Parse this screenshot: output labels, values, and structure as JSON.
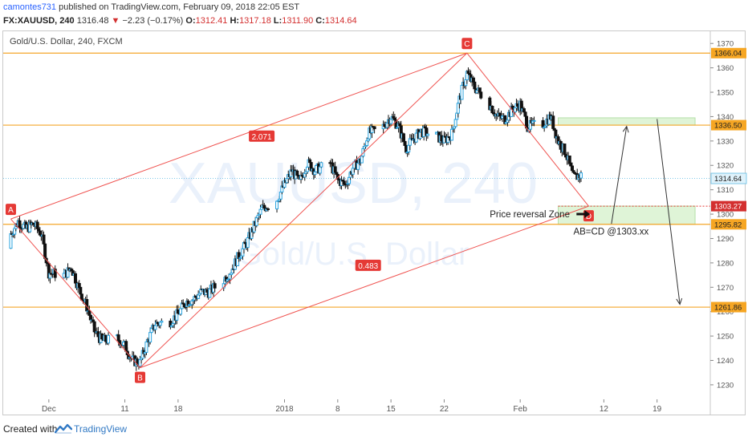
{
  "header": {
    "author": "camontes731",
    "published_text": " published on TradingView.com, February 09, 2018 22:05 EST",
    "symbol": "FX:XAUUSD, 240",
    "last": "1316.48",
    "change_arrow": "▼",
    "change": "−2.23 (−0.17%)",
    "o_label": "O:",
    "o_value": "1312.41",
    "h_label": "H:",
    "h_value": "1317.18",
    "l_label": "L:",
    "l_value": "1311.90",
    "c_label": "C:",
    "c_value": "1314.64"
  },
  "footer": {
    "created_with": "Created with",
    "brand": "TradingView"
  },
  "chart_data": {
    "type": "candlestick",
    "legend": "Gold/U.S. Dollar, 240, FXCM",
    "watermark_symbol": "XAUUSD, 240",
    "watermark_name": "Gold/U.S. Dollar",
    "ylim": [
      1228,
      1375
    ],
    "y_ticks": [
      1230,
      1240,
      1250,
      1260,
      1270,
      1280,
      1290,
      1300,
      1310,
      1320,
      1330,
      1340,
      1350,
      1360,
      1370
    ],
    "x_range": [
      "2017-11-25",
      "2018-02-26"
    ],
    "x_ticks": [
      {
        "label": "Dec",
        "date": "2017-12-01"
      },
      {
        "label": "11",
        "date": "2017-12-11"
      },
      {
        "label": "18",
        "date": "2017-12-18"
      },
      {
        "label": "2018",
        "date": "2018-01-01"
      },
      {
        "label": "8",
        "date": "2018-01-08"
      },
      {
        "label": "15",
        "date": "2018-01-15"
      },
      {
        "label": "22",
        "date": "2018-01-22"
      },
      {
        "label": "Feb",
        "date": "2018-02-01"
      },
      {
        "label": "12",
        "date": "2018-02-12"
      },
      {
        "label": "19",
        "date": "2018-02-19"
      }
    ],
    "price_path": [
      [
        "2017-11-25",
        1286
      ],
      [
        "2017-11-26",
        1292
      ],
      [
        "2017-11-27",
        1297
      ],
      [
        "2017-11-28",
        1294
      ],
      [
        "2017-11-29",
        1296
      ],
      [
        "2017-11-30",
        1292
      ],
      [
        "2017-12-01",
        1276
      ],
      [
        "2017-12-03",
        1275
      ],
      [
        "2017-12-04",
        1278
      ],
      [
        "2017-12-05",
        1269
      ],
      [
        "2017-12-06",
        1262
      ],
      [
        "2017-12-07",
        1252
      ],
      [
        "2017-12-08",
        1248
      ],
      [
        "2017-12-10",
        1249
      ],
      [
        "2017-12-11",
        1246
      ],
      [
        "2017-12-12",
        1240
      ],
      [
        "2017-12-13",
        1239
      ],
      [
        "2017-12-14",
        1248
      ],
      [
        "2017-12-15",
        1255
      ],
      [
        "2017-12-17",
        1256
      ],
      [
        "2017-12-18",
        1259
      ],
      [
        "2017-12-19",
        1264
      ],
      [
        "2017-12-20",
        1265
      ],
      [
        "2017-12-21",
        1268
      ],
      [
        "2017-12-22",
        1268
      ],
      [
        "2017-12-24",
        1273
      ],
      [
        "2017-12-25",
        1277
      ],
      [
        "2017-12-26",
        1283
      ],
      [
        "2017-12-27",
        1288
      ],
      [
        "2017-12-28",
        1295
      ],
      [
        "2017-12-29",
        1302
      ],
      [
        "2017-12-31",
        1306
      ],
      [
        "2018-01-01",
        1312
      ],
      [
        "2018-01-02",
        1318
      ],
      [
        "2018-01-03",
        1313
      ],
      [
        "2018-01-04",
        1321
      ],
      [
        "2018-01-05",
        1318
      ],
      [
        "2018-01-07",
        1321
      ],
      [
        "2018-01-08",
        1314
      ],
      [
        "2018-01-09",
        1312
      ],
      [
        "2018-01-10",
        1319
      ],
      [
        "2018-01-11",
        1322
      ],
      [
        "2018-01-12",
        1333
      ],
      [
        "2018-01-14",
        1336
      ],
      [
        "2018-01-15",
        1340
      ],
      [
        "2018-01-16",
        1336
      ],
      [
        "2018-01-17",
        1327
      ],
      [
        "2018-01-18",
        1331
      ],
      [
        "2018-01-19",
        1334
      ],
      [
        "2018-01-21",
        1332
      ],
      [
        "2018-01-22",
        1330
      ],
      [
        "2018-01-23",
        1333
      ],
      [
        "2018-01-24",
        1347
      ],
      [
        "2018-01-25",
        1358
      ],
      [
        "2018-01-26",
        1352
      ],
      [
        "2018-01-28",
        1345
      ],
      [
        "2018-01-29",
        1340
      ],
      [
        "2018-01-30",
        1339
      ],
      [
        "2018-01-31",
        1343
      ],
      [
        "2018-02-01",
        1345
      ],
      [
        "2018-02-02",
        1336
      ],
      [
        "2018-02-04",
        1337
      ],
      [
        "2018-02-05",
        1340
      ],
      [
        "2018-02-06",
        1330
      ],
      [
        "2018-02-07",
        1325
      ],
      [
        "2018-02-08",
        1315
      ],
      [
        "2018-02-09",
        1316
      ]
    ],
    "horizontal_levels": [
      {
        "value": 1366.04,
        "label": "1366.04"
      },
      {
        "value": 1336.5,
        "label": "1336.50"
      },
      {
        "value": 1295.82,
        "label": "1295.82"
      },
      {
        "value": 1261.86,
        "label": "1261.86"
      }
    ],
    "price_labels": [
      {
        "value": 1314.64,
        "label": "1314.64",
        "style": "current"
      },
      {
        "value": 1303.27,
        "label": "1303.27",
        "style": "red"
      }
    ],
    "harmonic_points": [
      {
        "label": "A",
        "date": "2017-11-26",
        "price": 1298
      },
      {
        "label": "B",
        "date": "2017-12-13",
        "price": 1237
      },
      {
        "label": "C",
        "date": "2018-01-25",
        "price": 1366.04
      },
      {
        "label": "D",
        "date": "2018-02-10",
        "price": 1303.27
      }
    ],
    "ratio_labels": [
      {
        "label": "2.071",
        "date": "2017-12-29",
        "price": 1332
      },
      {
        "label": "0.483",
        "date": "2018-01-12",
        "price": 1279
      }
    ],
    "zones": [
      {
        "date_from": "2018-02-06",
        "date_to": "2018-02-24",
        "price_from": 1336.5,
        "price_to": 1339.5
      },
      {
        "date_from": "2018-02-06",
        "date_to": "2018-02-24",
        "price_from": 1295.8,
        "price_to": 1303.3
      }
    ],
    "arrows": [
      {
        "from_date": "2018-02-13",
        "from_price": 1296,
        "to_date": "2018-02-15",
        "to_price": 1336
      },
      {
        "from_date": "2018-02-19",
        "from_price": 1339,
        "to_date": "2018-02-22",
        "to_price": 1263
      }
    ],
    "annotations": [
      {
        "text": "Price reversal Zone",
        "date": "2018-01-28",
        "price": 1300
      },
      {
        "text": "AB=CD @1303.xx",
        "date": "2018-02-08",
        "price": 1293
      }
    ]
  }
}
